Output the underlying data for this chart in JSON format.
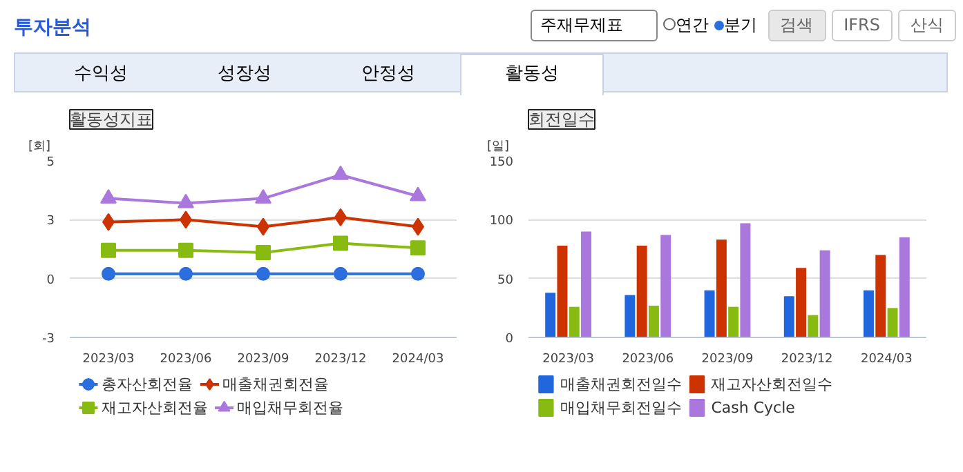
{
  "chart_data": [
    {
      "type": "other",
      "title": "투자분석",
      "annotations": [
        "주재무제표",
        "연간",
        "분기",
        "검색",
        "IFRS",
        "산식",
        "수익성",
        "성장성",
        "안정성",
        "활동성"
      ]
    },
    {
      "type": "line",
      "title": "활동성지표",
      "ylabel": "[회]",
      "categories": [
        "2023/03",
        "2023/06",
        "2023/09",
        "2023/12",
        "2024/03"
      ],
      "ylim": [
        -2.5,
        5
      ],
      "yticks": [
        {
          "value": -2.5,
          "label": "-3"
        },
        0,
        {
          "value": 2.5,
          "label": "3"
        },
        {
          "value": 5,
          "label": "5"
        }
      ],
      "grid": "y",
      "legend": "bottom",
      "line_style": "solid",
      "series": [
        {
          "name": "총자산회전율",
          "color": "#2a6fdb",
          "marker": "circle",
          "values": [
            0.2,
            0.2,
            0.2,
            0.2,
            0.2
          ]
        },
        {
          "name": "매출채권회전율",
          "color": "#cc3300",
          "marker": "diamond",
          "values": [
            2.4,
            2.5,
            2.2,
            2.6,
            2.2
          ]
        },
        {
          "name": "재고자산회전율",
          "color": "#88bb11",
          "marker": "square",
          "values": [
            1.2,
            1.2,
            1.1,
            1.5,
            1.3
          ]
        },
        {
          "name": "매입채무회전율",
          "color": "#aa77dd",
          "marker": "triangle",
          "values": [
            3.4,
            3.2,
            3.4,
            4.4,
            3.5
          ]
        }
      ]
    },
    {
      "type": "bar",
      "title": "회전일수",
      "ylabel": "[일]",
      "categories": [
        "2023/03",
        "2023/06",
        "2023/09",
        "2023/12",
        "2024/03"
      ],
      "ylim": [
        0,
        150
      ],
      "yticks": [
        0,
        50,
        100,
        150
      ],
      "grid": "y",
      "legend": "bottom",
      "series": [
        {
          "name": "매출채권회전일수",
          "color": "#2266dd",
          "values": [
            38,
            36,
            40,
            35,
            40
          ]
        },
        {
          "name": "재고자산회전일수",
          "color": "#cc3300",
          "values": [
            78,
            78,
            83,
            59,
            70
          ]
        },
        {
          "name": "매입채무회전일수",
          "color": "#88bb11",
          "values": [
            26,
            27,
            26,
            19,
            25
          ]
        },
        {
          "name": "Cash Cycle",
          "color": "#aa77dd",
          "values": [
            90,
            87,
            97,
            74,
            85
          ]
        }
      ]
    }
  ]
}
